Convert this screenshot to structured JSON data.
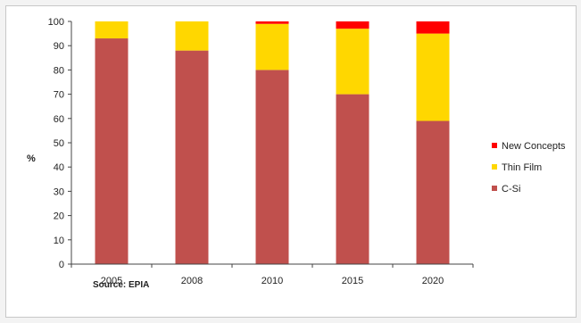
{
  "chart_data": {
    "type": "bar",
    "stacked": true,
    "categories": [
      "2005",
      "2008",
      "2010",
      "2015",
      "2020"
    ],
    "series": [
      {
        "name": "C-Si",
        "color": "#c0504d",
        "values": [
          93,
          88,
          80,
          70,
          59
        ]
      },
      {
        "name": "Thin Film",
        "color": "#ffd700",
        "values": [
          7,
          12,
          19,
          27,
          36
        ]
      },
      {
        "name": "New Concepts",
        "color": "#ff0000",
        "values": [
          0,
          0,
          1,
          3,
          5
        ]
      }
    ],
    "ylabel": "%",
    "ylim": [
      0,
      100
    ],
    "yticks": [
      "0",
      "10",
      "20",
      "30",
      "40",
      "50",
      "60",
      "70",
      "80",
      "90",
      "100"
    ],
    "legend_position": "right",
    "grid": false,
    "source": "Source: EPIA"
  }
}
